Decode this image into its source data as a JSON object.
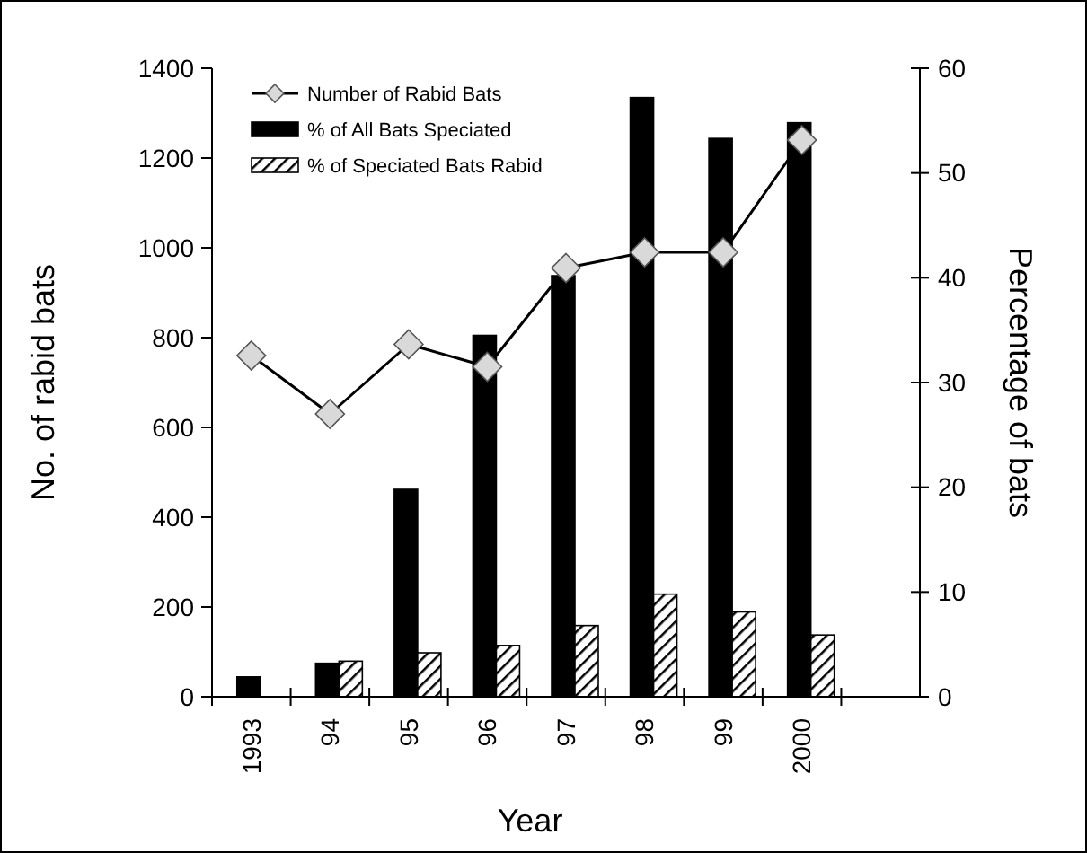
{
  "chart_data": {
    "type": "bar",
    "xlabel": "Year",
    "ylabel": "No. of rabid bats",
    "y2label": "Percentage of bats",
    "categories": [
      "1993",
      "94",
      "95",
      "96",
      "97",
      "98",
      "99",
      "2000",
      null
    ],
    "series": [
      {
        "name": "Number of Rabid Bats",
        "type": "line",
        "color": "#000000",
        "marker": "diamond",
        "values": [
          760,
          630,
          785,
          735,
          955,
          990,
          990,
          1240,
          null
        ]
      },
      {
        "name": "% of All Bats Speciated",
        "color": "#000000",
        "axis": "y2",
        "values": [
          1.9,
          3.2,
          19.8,
          34.5,
          40.2,
          57.2,
          53.3,
          54.8,
          null
        ]
      },
      {
        "name": "% of Speciated Bats Rabid",
        "color": "#000000",
        "axis": "y2",
        "values": [
          null,
          3.4,
          4.2,
          4.9,
          6.8,
          9.8,
          8.1,
          5.9,
          null
        ]
      }
    ],
    "ylim": [
      0,
      1400
    ],
    "yticks": [
      0,
      200,
      400,
      600,
      800,
      1000,
      1200,
      1400
    ],
    "y2lim": [
      0,
      60
    ],
    "y2ticks": [
      0,
      10,
      20,
      30,
      40,
      50,
      60
    ],
    "grid": false,
    "legend": "top left"
  }
}
